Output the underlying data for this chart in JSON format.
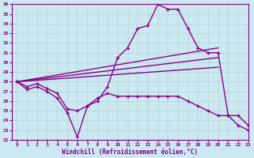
{
  "xlabel": "Windchill (Refroidissement éolien,°C)",
  "xlim": [
    -0.5,
    23
  ],
  "ylim": [
    22,
    36
  ],
  "yticks": [
    22,
    23,
    24,
    25,
    26,
    27,
    28,
    29,
    30,
    31,
    32,
    33,
    34,
    35,
    36
  ],
  "xticks": [
    0,
    1,
    2,
    3,
    4,
    5,
    6,
    7,
    8,
    9,
    10,
    11,
    12,
    13,
    14,
    15,
    16,
    17,
    18,
    19,
    20,
    21,
    22,
    23
  ],
  "bg_color": "#cce8f0",
  "line_color": "#880088",
  "curves": [
    {
      "x": [
        0,
        1,
        2,
        3,
        4,
        5,
        6,
        7,
        8,
        9,
        10,
        11,
        12,
        13,
        14,
        15,
        16,
        17,
        18,
        19,
        20,
        21,
        22,
        23
      ],
      "y": [
        28,
        27.5,
        27.8,
        27.3,
        26.8,
        25.2,
        25.0,
        25.5,
        26.0,
        27.5,
        30.5,
        31.5,
        33.5,
        33.8,
        36.0,
        35.5,
        35.5,
        33.5,
        31.5,
        31.0,
        31.0,
        24.5,
        23.5,
        23.0
      ],
      "marker": true,
      "linewidth": 1.0
    },
    {
      "x": [
        0,
        20
      ],
      "y": [
        28.0,
        31.5
      ],
      "marker": false,
      "linewidth": 1.0
    },
    {
      "x": [
        0,
        20
      ],
      "y": [
        28.0,
        30.5
      ],
      "marker": false,
      "linewidth": 1.0
    },
    {
      "x": [
        0,
        20
      ],
      "y": [
        28.0,
        29.5
      ],
      "marker": false,
      "linewidth": 1.0
    },
    {
      "x": [
        0,
        1,
        2,
        3,
        4,
        5,
        6,
        7,
        8,
        9,
        10,
        11,
        12,
        13,
        14,
        15,
        16,
        17,
        18,
        19,
        20,
        21,
        22,
        23
      ],
      "y": [
        28,
        27.2,
        27.5,
        27.0,
        26.3,
        24.8,
        22.3,
        25.5,
        26.3,
        26.8,
        26.5,
        26.5,
        26.5,
        26.5,
        26.5,
        26.5,
        26.5,
        26.0,
        25.5,
        25.0,
        24.5,
        24.5,
        24.5,
        23.5
      ],
      "marker": true,
      "linewidth": 1.0
    }
  ]
}
